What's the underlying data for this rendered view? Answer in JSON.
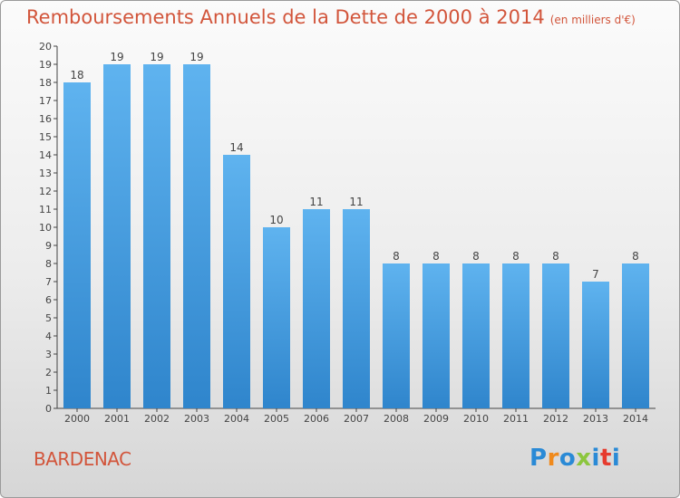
{
  "colors": {
    "title": "#d2553b",
    "bar_top": "#5fb3ef",
    "bar_bottom": "#2f85cc",
    "axis": "#444444",
    "label": "#444444"
  },
  "chart_data": {
    "type": "bar",
    "title": "Remboursements Annuels de la Dette de 2000 à 2014",
    "subtitle": "(en milliers d'€)",
    "xlabel": "",
    "ylabel": "",
    "categories": [
      "2000",
      "2001",
      "2002",
      "2003",
      "2004",
      "2005",
      "2006",
      "2007",
      "2008",
      "2009",
      "2010",
      "2011",
      "2012",
      "2013",
      "2014"
    ],
    "values": [
      18,
      19,
      19,
      19,
      14,
      10,
      11,
      11,
      8,
      8,
      8,
      8,
      8,
      7,
      8
    ],
    "ylim": [
      0,
      20
    ],
    "yticks": [
      0,
      1,
      2,
      3,
      4,
      5,
      6,
      7,
      8,
      9,
      10,
      11,
      12,
      13,
      14,
      15,
      16,
      17,
      18,
      19,
      20
    ],
    "grid": false,
    "data_labels": true
  },
  "footer": {
    "place": "BARDENAC",
    "logo": "Proxiti",
    "logo_colors": [
      "#2a8ad6",
      "#f08a1c",
      "#2a8ad6",
      "#8cc63e",
      "#2a8ad6",
      "#e63b2e",
      "#2a8ad6"
    ]
  }
}
